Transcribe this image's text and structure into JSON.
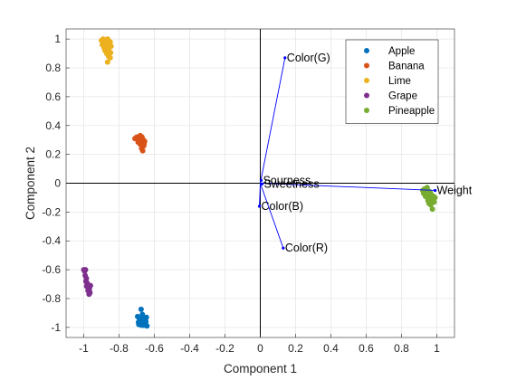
{
  "chart_data": {
    "type": "scatter",
    "xlabel": "Component 1",
    "ylabel": "Component 2",
    "xlim": [
      -1.1,
      1.1
    ],
    "ylim": [
      -1.07,
      1.07
    ],
    "xticks": [
      -1,
      -0.8,
      -0.6,
      -0.4,
      -0.2,
      0,
      0.2,
      0.4,
      0.6,
      0.8,
      1
    ],
    "xtick_labels": [
      "-1",
      "-0.8",
      "-0.6",
      "-0.4",
      "-0.2",
      "0",
      "0.2",
      "0.4",
      "0.6",
      "0.8",
      "1"
    ],
    "yticks": [
      -1,
      -0.8,
      -0.6,
      -0.4,
      -0.2,
      0,
      0.2,
      0.4,
      0.6,
      0.8,
      1
    ],
    "ytick_labels": [
      "-1",
      "-0.8",
      "-0.6",
      "-0.4",
      "-0.2",
      "0",
      "0.2",
      "0.4",
      "0.6",
      "0.8",
      "1"
    ],
    "grid": true,
    "legend_position": "top-right",
    "series": [
      {
        "name": "Apple",
        "color": "#0072BD",
        "points": [
          [
            -0.695,
            -0.925
          ],
          [
            -0.685,
            -0.955
          ],
          [
            -0.678,
            -0.97
          ],
          [
            -0.672,
            -0.94
          ],
          [
            -0.665,
            -0.96
          ],
          [
            -0.66,
            -0.985
          ],
          [
            -0.655,
            -0.95
          ],
          [
            -0.65,
            -0.975
          ],
          [
            -0.645,
            -0.93
          ],
          [
            -0.642,
            -0.99
          ],
          [
            -0.668,
            -0.91
          ],
          [
            -0.675,
            -0.875
          ],
          [
            -0.69,
            -0.965
          ],
          [
            -0.658,
            -0.935
          ],
          [
            -0.648,
            -0.96
          ],
          [
            -0.68,
            -0.945
          ],
          [
            -0.662,
            -0.97
          ],
          [
            -0.652,
            -0.94
          ],
          [
            -0.672,
            -0.985
          ],
          [
            -0.688,
            -0.98
          ]
        ]
      },
      {
        "name": "Banana",
        "color": "#D95319",
        "points": [
          [
            -0.71,
            0.31
          ],
          [
            -0.7,
            0.32
          ],
          [
            -0.69,
            0.305
          ],
          [
            -0.68,
            0.33
          ],
          [
            -0.675,
            0.295
          ],
          [
            -0.67,
            0.32
          ],
          [
            -0.665,
            0.28
          ],
          [
            -0.66,
            0.26
          ],
          [
            -0.672,
            0.24
          ],
          [
            -0.655,
            0.29
          ],
          [
            -0.68,
            0.27
          ],
          [
            -0.688,
            0.3
          ],
          [
            -0.662,
            0.3
          ],
          [
            -0.678,
            0.315
          ],
          [
            -0.666,
            0.225
          ],
          [
            -0.692,
            0.285
          ],
          [
            -0.658,
            0.275
          ],
          [
            -0.684,
            0.325
          ]
        ]
      },
      {
        "name": "Lime",
        "color": "#EDB120",
        "points": [
          [
            -0.9,
            0.99
          ],
          [
            -0.89,
            1.0
          ],
          [
            -0.88,
            0.98
          ],
          [
            -0.875,
            0.95
          ],
          [
            -0.87,
            0.97
          ],
          [
            -0.865,
            1.0
          ],
          [
            -0.86,
            0.99
          ],
          [
            -0.855,
            0.96
          ],
          [
            -0.85,
            0.98
          ],
          [
            -0.845,
            0.95
          ],
          [
            -0.88,
            0.92
          ],
          [
            -0.87,
            0.9
          ],
          [
            -0.86,
            0.88
          ],
          [
            -0.85,
            0.87
          ],
          [
            -0.865,
            0.84
          ],
          [
            -0.895,
            0.96
          ],
          [
            -0.885,
            0.94
          ],
          [
            -0.848,
            0.905
          ],
          [
            -0.858,
            0.93
          ],
          [
            -0.875,
            0.985
          ]
        ]
      },
      {
        "name": "Grape",
        "color": "#7E2F8E",
        "points": [
          [
            -1.0,
            -0.6
          ],
          [
            -0.995,
            -0.61
          ],
          [
            -0.99,
            -0.6
          ],
          [
            -0.992,
            -0.64
          ],
          [
            -0.985,
            -0.66
          ],
          [
            -0.988,
            -0.68
          ],
          [
            -0.98,
            -0.7
          ],
          [
            -0.975,
            -0.72
          ],
          [
            -0.972,
            -0.74
          ],
          [
            -0.978,
            -0.7
          ],
          [
            -0.968,
            -0.73
          ],
          [
            -0.962,
            -0.71
          ],
          [
            -0.965,
            -0.76
          ],
          [
            -0.97,
            -0.77
          ],
          [
            -0.982,
            -0.69
          ],
          [
            -0.976,
            -0.745
          ],
          [
            -0.966,
            -0.755
          ],
          [
            -0.984,
            -0.715
          ]
        ]
      },
      {
        "name": "Pineapple",
        "color": "#77AC30",
        "points": [
          [
            0.92,
            -0.05
          ],
          [
            0.925,
            -0.07
          ],
          [
            0.93,
            -0.04
          ],
          [
            0.935,
            -0.09
          ],
          [
            0.94,
            -0.06
          ],
          [
            0.945,
            -0.1
          ],
          [
            0.95,
            -0.05
          ],
          [
            0.955,
            -0.08
          ],
          [
            0.96,
            -0.11
          ],
          [
            0.965,
            -0.07
          ],
          [
            0.97,
            -0.1
          ],
          [
            0.975,
            -0.12
          ],
          [
            0.98,
            -0.09
          ],
          [
            0.985,
            -0.13
          ],
          [
            0.99,
            -0.1
          ],
          [
            0.955,
            -0.14
          ],
          [
            0.965,
            -0.15
          ],
          [
            0.975,
            -0.18
          ],
          [
            0.94,
            -0.04
          ],
          [
            0.95,
            -0.12
          ],
          [
            0.96,
            -0.06
          ],
          [
            0.97,
            -0.14
          ],
          [
            0.945,
            -0.03
          ],
          [
            0.98,
            -0.11
          ]
        ]
      }
    ],
    "biplot_color": "#0000ff",
    "biplot_vectors": [
      {
        "label": "Color(G)",
        "x": 0.14,
        "y": 0.87
      },
      {
        "label": "Color(R)",
        "x": 0.13,
        "y": -0.45
      },
      {
        "label": "Color(B)",
        "x": -0.005,
        "y": -0.16
      },
      {
        "label": "Weight",
        "x": 0.99,
        "y": -0.05
      },
      {
        "label": "Sourness",
        "x": 0.005,
        "y": 0.02
      },
      {
        "label": "Sweetness",
        "x": 0.01,
        "y": -0.005
      }
    ]
  }
}
